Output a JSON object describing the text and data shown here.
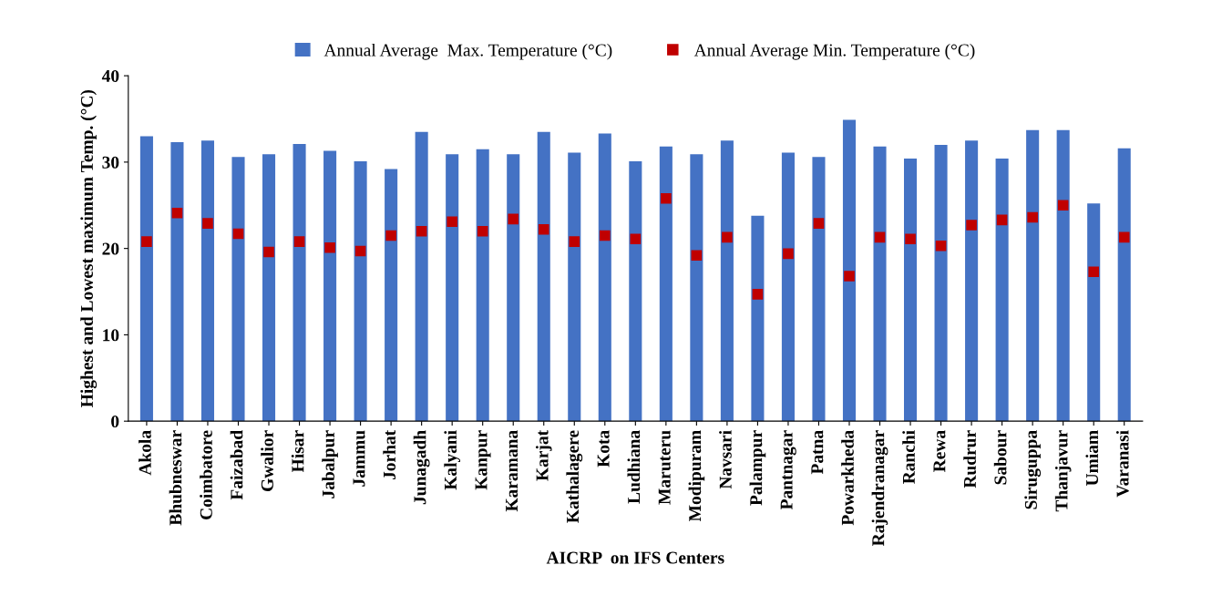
{
  "chart_data": {
    "type": "bar",
    "xlabel": "AICRP  on IFS Centers",
    "ylabel": "Highest and Lowest maximum Temp. (°C)",
    "categories": [
      "Akola",
      "Bhubneswar",
      "Coimbatore",
      "Faizabad",
      "Gwalior",
      "Hisar",
      "Jabalpur",
      "Jammu",
      "Jorhat",
      "Junagadh",
      "Kalyani",
      "Kanpur",
      "Karamana",
      "Karjat",
      "Kathalagere",
      "Kota",
      "Ludhiana",
      "Maruteru",
      "Modipuram",
      "Navsari",
      "Palampur",
      "Pantnagar",
      "Patna",
      "Powarkheda",
      "Rajendranagar",
      "Ranchi",
      "Rewa",
      "Rudrur",
      "Sabour",
      "Siruguppa",
      "Thanjavur",
      "Umiam",
      "Varanasi"
    ],
    "series": [
      {
        "name": "Annual Average  Max. Temperature (°C)",
        "color": "#4472c4",
        "values": [
          33.0,
          32.3,
          32.5,
          30.6,
          30.9,
          32.1,
          31.3,
          30.1,
          29.2,
          33.5,
          30.9,
          31.5,
          30.9,
          33.5,
          31.1,
          33.3,
          30.1,
          31.8,
          30.9,
          32.5,
          23.8,
          31.1,
          30.6,
          34.9,
          31.8,
          30.4,
          32.0,
          32.5,
          30.4,
          33.7,
          33.7,
          25.2,
          31.6
        ]
      },
      {
        "name": "Annual Average Min. Temperature (°C)",
        "type": "scatter",
        "color": "#c00000",
        "marker": "square",
        "values": [
          20.8,
          24.1,
          22.9,
          21.7,
          19.6,
          20.8,
          20.1,
          19.7,
          21.5,
          22.0,
          23.1,
          22.0,
          23.4,
          22.2,
          20.8,
          21.5,
          21.1,
          25.8,
          19.2,
          21.3,
          14.7,
          19.4,
          22.9,
          16.8,
          21.3,
          21.1,
          20.3,
          22.7,
          23.3,
          23.6,
          25.0,
          17.3,
          21.3
        ]
      }
    ],
    "ylim": [
      0,
      40
    ],
    "yticks": [
      0,
      10,
      20,
      30,
      40
    ],
    "grid": false,
    "legend": "top"
  }
}
